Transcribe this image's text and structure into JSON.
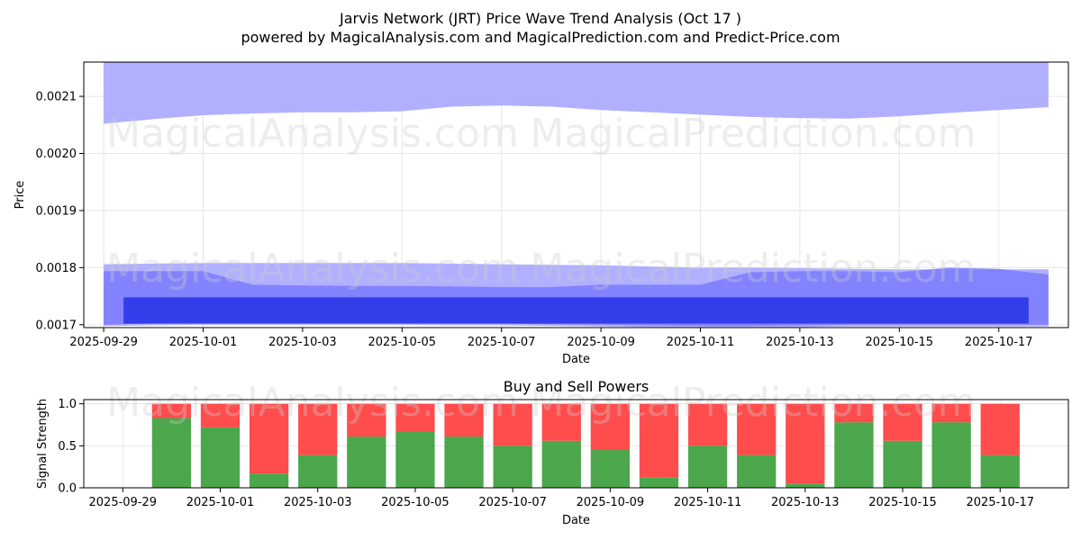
{
  "title_line1": "Jarvis Network (JRT) Price Wave Trend Analysis (Oct 17 )",
  "title_line2": "powered by MagicalAnalysis.com and MagicalPrediction.com and Predict-Price.com",
  "watermarks": [
    "MagicalAnalysis.com",
    "MagicalPrediction.com"
  ],
  "colors": {
    "band_light": "#b0b0ff",
    "band_mid": "#7b7bff",
    "band_dark": "#2b35e8",
    "buy": "#4ca64c",
    "sell": "#ff4c4c",
    "grid": "#e6e6e6"
  },
  "chart_data": [
    {
      "type": "area",
      "title": "",
      "xlabel": "Date",
      "ylabel": "Price",
      "ylim": [
        0.001695,
        0.00216
      ],
      "xlim_days": [
        -0.4,
        19.4
      ],
      "x_ticks": [
        "2025-09-29",
        "2025-10-01",
        "2025-10-03",
        "2025-10-05",
        "2025-10-07",
        "2025-10-09",
        "2025-10-11",
        "2025-10-13",
        "2025-10-15",
        "2025-10-17"
      ],
      "y_ticks": [
        "0.0017",
        "0.0018",
        "0.0019",
        "0.0020",
        "0.0021"
      ],
      "y_tick_values": [
        0.0017,
        0.0018,
        0.0019,
        0.002,
        0.0021
      ],
      "grid": true,
      "x_days": [
        0,
        1,
        2,
        3,
        4,
        5,
        6,
        7,
        8,
        9,
        10,
        11,
        12,
        13,
        14,
        15,
        16,
        17,
        18,
        19
      ],
      "series": [
        {
          "name": "upper_band",
          "upper": [
            0.00216,
            0.00216,
            0.00216,
            0.00216,
            0.00216,
            0.00216,
            0.00216,
            0.00216,
            0.00216,
            0.00216,
            0.00216,
            0.00216,
            0.00216,
            0.00216,
            0.00216,
            0.00216,
            0.00216,
            0.00216,
            0.00216,
            0.00216
          ],
          "lower": [
            0.002052,
            0.00206,
            0.002067,
            0.00207,
            0.002072,
            0.002072,
            0.002074,
            0.002082,
            0.002084,
            0.002082,
            0.002076,
            0.002072,
            0.002068,
            0.002064,
            0.002062,
            0.002061,
            0.002065,
            0.002071,
            0.002076,
            0.002081
          ]
        },
        {
          "name": "wide_band",
          "upper": [
            0.001806,
            0.001807,
            0.001808,
            0.001808,
            0.001808,
            0.001808,
            0.001808,
            0.001807,
            0.001806,
            0.001805,
            0.001804,
            0.001802,
            0.0018,
            0.0018,
            0.001799,
            0.001798,
            0.001797,
            0.001797,
            0.001797,
            0.001797
          ],
          "lower": [
            0.001698,
            0.001699,
            0.0017,
            0.0017,
            0.0017,
            0.0017,
            0.0017,
            0.001699,
            0.001699,
            0.001698,
            0.001697,
            0.001696,
            0.001696,
            0.001696,
            0.001696,
            0.001697,
            0.001697,
            0.001697,
            0.001697,
            0.001697
          ]
        },
        {
          "name": "mid_band",
          "upper": [
            0.001794,
            0.001794,
            0.001794,
            0.00177,
            0.001769,
            0.001768,
            0.001768,
            0.001767,
            0.001766,
            0.001766,
            0.00177,
            0.00177,
            0.00177,
            0.001792,
            0.001794,
            0.001794,
            0.001792,
            0.0018,
            0.001798,
            0.001788
          ],
          "lower": [
            0.0017,
            0.001702,
            0.001703,
            0.001703,
            0.001703,
            0.001703,
            0.001703,
            0.001702,
            0.001702,
            0.001701,
            0.0017,
            0.001699,
            0.001698,
            0.001698,
            0.001699,
            0.0017,
            0.0017,
            0.0017,
            0.0017,
            0.0017
          ]
        },
        {
          "name": "core_band",
          "x_range": [
            0.4,
            18.6
          ],
          "upper": 0.001748,
          "lower": 0.001702
        }
      ]
    },
    {
      "type": "bar",
      "title": "Buy and Sell Powers",
      "xlabel": "Date",
      "ylabel": "Signal Strength",
      "ylim": [
        0,
        1.05
      ],
      "xlim_days": [
        -0.8,
        19.4
      ],
      "x_ticks": [
        "2025-09-29",
        "2025-10-01",
        "2025-10-03",
        "2025-10-05",
        "2025-10-07",
        "2025-10-09",
        "2025-10-11",
        "2025-10-13",
        "2025-10-15",
        "2025-10-17"
      ],
      "y_ticks": [
        "0.0",
        "0.5",
        "1.0"
      ],
      "y_tick_values": [
        0,
        0.5,
        1.0
      ],
      "x_days": [
        1,
        2,
        3,
        4,
        5,
        6,
        7,
        8,
        9,
        10,
        11,
        12,
        13,
        14,
        15,
        16,
        17,
        18
      ],
      "series": [
        {
          "name": "Buy",
          "values": [
            0.83,
            0.72,
            0.17,
            0.39,
            0.61,
            0.67,
            0.61,
            0.5,
            0.56,
            0.45,
            0.12,
            0.5,
            0.39,
            0.05,
            0.78,
            0.56,
            0.78,
            0.39
          ]
        },
        {
          "name": "Sell",
          "values": [
            0.17,
            0.28,
            0.83,
            0.61,
            0.39,
            0.33,
            0.39,
            0.5,
            0.44,
            0.55,
            0.88,
            0.5,
            0.61,
            0.95,
            0.22,
            0.44,
            0.22,
            0.61
          ]
        }
      ]
    }
  ]
}
